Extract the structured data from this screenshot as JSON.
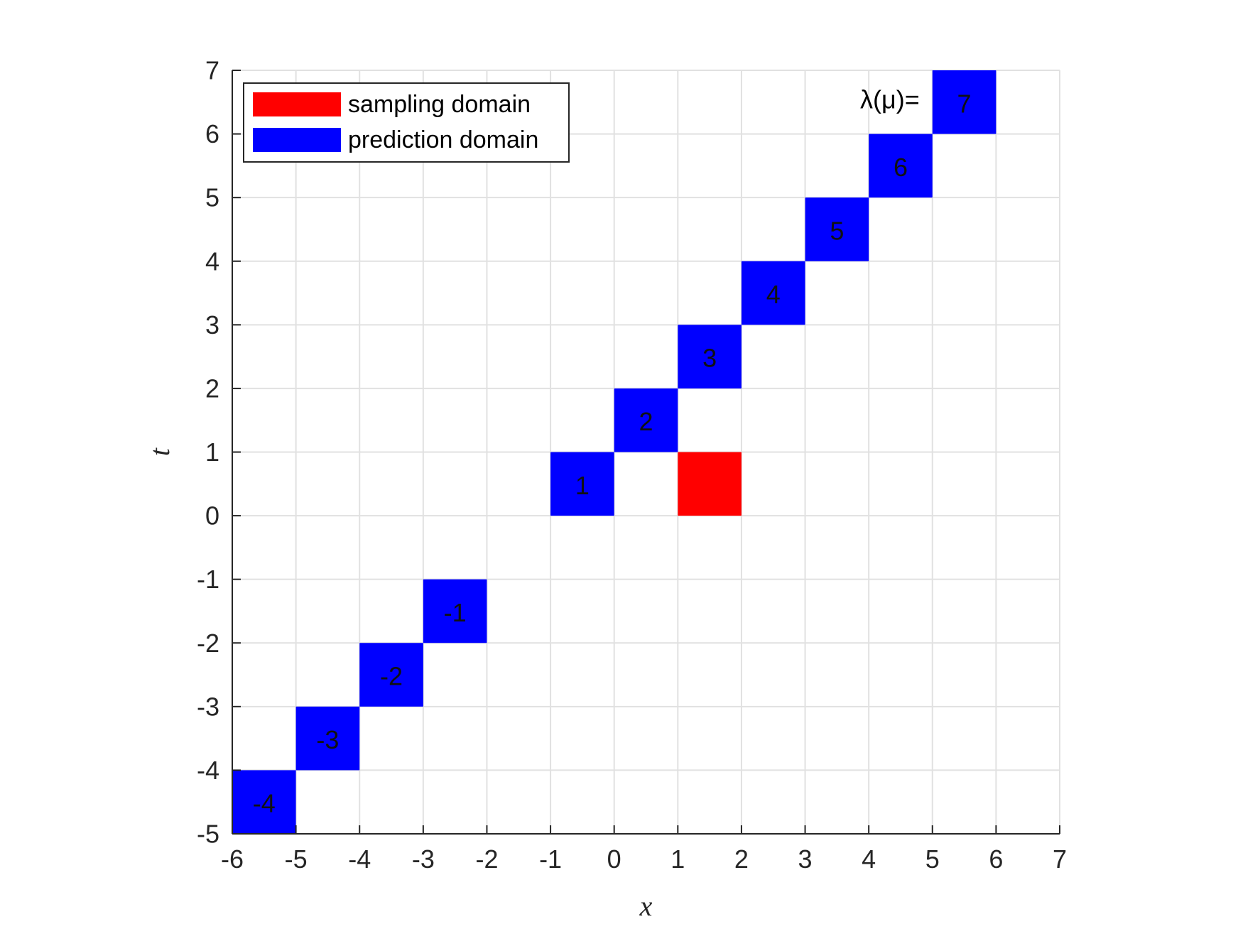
{
  "chart_data": {
    "type": "heatmap",
    "title": "",
    "xlabel": "x",
    "ylabel": "t",
    "xlim": [
      -6,
      7
    ],
    "ylim": [
      -5,
      7
    ],
    "xticks": [
      -6,
      -5,
      -4,
      -3,
      -2,
      -1,
      0,
      1,
      2,
      3,
      4,
      5,
      6,
      7
    ],
    "yticks": [
      -5,
      -4,
      -3,
      -2,
      -1,
      0,
      1,
      2,
      3,
      4,
      5,
      6,
      7
    ],
    "xtick_labels": [
      "-6",
      "-5",
      "-4",
      "-3",
      "-2",
      "-1",
      "0",
      "1",
      "2",
      "3",
      "4",
      "5",
      "6",
      "7"
    ],
    "ytick_labels": [
      "-5",
      "-4",
      "-3",
      "-2",
      "-1",
      "0",
      "1",
      "2",
      "3",
      "4",
      "5",
      "6",
      "7"
    ],
    "grid": true,
    "legend": {
      "placement": "top-left",
      "entries": [
        {
          "name": "sampling domain",
          "color": "#ff0000"
        },
        {
          "name": "prediction domain",
          "color": "#0000ff"
        }
      ]
    },
    "annotation": {
      "text": "λ(μ)=",
      "x": 5,
      "y": 6.5
    },
    "series": [
      {
        "name": "sampling domain",
        "color": "#ff0000",
        "cells": [
          {
            "x0": 1,
            "x1": 2,
            "t0": 0,
            "t1": 1,
            "label": ""
          }
        ]
      },
      {
        "name": "prediction domain",
        "color": "#0000ff",
        "cells": [
          {
            "x0": -6,
            "x1": -5,
            "t0": -5,
            "t1": -4,
            "label": "-4"
          },
          {
            "x0": -5,
            "x1": -4,
            "t0": -4,
            "t1": -3,
            "label": "-3"
          },
          {
            "x0": -4,
            "x1": -3,
            "t0": -3,
            "t1": -2,
            "label": "-2"
          },
          {
            "x0": -3,
            "x1": -2,
            "t0": -2,
            "t1": -1,
            "label": "-1"
          },
          {
            "x0": -1,
            "x1": 0,
            "t0": 0,
            "t1": 1,
            "label": "1"
          },
          {
            "x0": 0,
            "x1": 1,
            "t0": 1,
            "t1": 2,
            "label": "2"
          },
          {
            "x0": 1,
            "x1": 2,
            "t0": 2,
            "t1": 3,
            "label": "3"
          },
          {
            "x0": 2,
            "x1": 3,
            "t0": 3,
            "t1": 4,
            "label": "4"
          },
          {
            "x0": 3,
            "x1": 4,
            "t0": 4,
            "t1": 5,
            "label": "5"
          },
          {
            "x0": 4,
            "x1": 5,
            "t0": 5,
            "t1": 6,
            "label": "6"
          },
          {
            "x0": 5,
            "x1": 6,
            "t0": 6,
            "t1": 7,
            "label": "7"
          }
        ]
      }
    ]
  }
}
